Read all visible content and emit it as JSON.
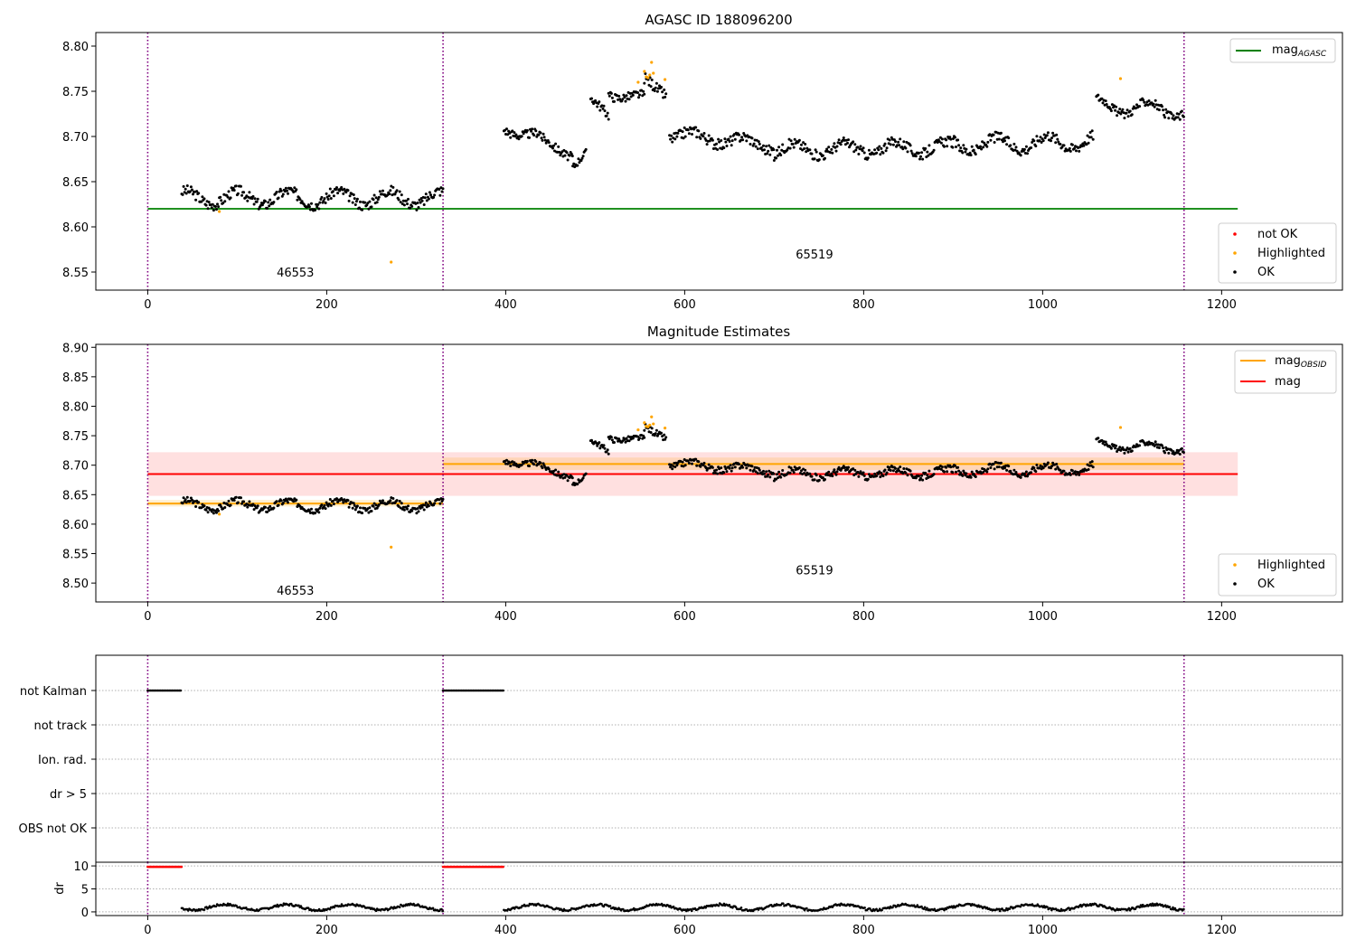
{
  "chart_data": [
    {
      "type": "scatter",
      "title": "AGASC ID 188096200",
      "xlim": [
        -58,
        1335
      ],
      "ylim": [
        8.53,
        8.815
      ],
      "x_ticks": [
        0,
        200,
        400,
        600,
        800,
        1000,
        1200
      ],
      "y_ticks": [
        8.55,
        8.6,
        8.65,
        8.7,
        8.75,
        8.8
      ],
      "obs_boundaries": [
        0,
        330,
        1158
      ],
      "obs_labels": [
        {
          "text": "46553",
          "x": 165,
          "y": 8.545
        },
        {
          "text": "65519",
          "x": 745,
          "y": 8.565
        }
      ],
      "lines": [
        {
          "name": "mag_AGASC",
          "color": "#008000",
          "y": 8.62,
          "x": [
            0,
            1218
          ]
        }
      ],
      "legend_lines": [
        {
          "label": "mag",
          "sub": "AGASC",
          "color": "#008000"
        }
      ],
      "legend_points": [
        {
          "label": "not OK",
          "color": "#ff0000"
        },
        {
          "label": "Highlighted",
          "color": "#ffa500"
        },
        {
          "label": "OK",
          "color": "#000000"
        }
      ],
      "segments": [
        {
          "x0": 38,
          "x1": 330,
          "y0": 8.632,
          "y1": 8.632,
          "amp": 0.008,
          "noise": 0.006
        },
        {
          "x0": 398,
          "x1": 440,
          "y0": 8.708,
          "y1": 8.7,
          "amp": 0.004,
          "noise": 0.005
        },
        {
          "x0": 440,
          "x1": 475,
          "y0": 8.695,
          "y1": 8.68,
          "amp": 0.004,
          "noise": 0.005
        },
        {
          "x0": 475,
          "x1": 490,
          "y0": 8.668,
          "y1": 8.68,
          "amp": 0.003,
          "noise": 0.004
        },
        {
          "x0": 495,
          "x1": 515,
          "y0": 8.74,
          "y1": 8.725,
          "amp": 0.003,
          "noise": 0.005
        },
        {
          "x0": 515,
          "x1": 555,
          "y0": 8.748,
          "y1": 8.742,
          "amp": 0.004,
          "noise": 0.005
        },
        {
          "x0": 555,
          "x1": 580,
          "y0": 8.76,
          "y1": 8.75,
          "amp": 0.005,
          "noise": 0.006
        },
        {
          "x0": 583,
          "x1": 700,
          "y0": 8.703,
          "y1": 8.69,
          "amp": 0.006,
          "noise": 0.006
        },
        {
          "x0": 700,
          "x1": 900,
          "y0": 8.685,
          "y1": 8.688,
          "amp": 0.007,
          "noise": 0.006
        },
        {
          "x0": 900,
          "x1": 1057,
          "y0": 8.69,
          "y1": 8.695,
          "amp": 0.008,
          "noise": 0.006
        },
        {
          "x0": 1060,
          "x1": 1158,
          "y0": 8.735,
          "y1": 8.728,
          "amp": 0.008,
          "noise": 0.005
        }
      ],
      "highlighted": [
        [
          80,
          8.617
        ],
        [
          272,
          8.561
        ],
        [
          548,
          8.76
        ],
        [
          555,
          8.772
        ],
        [
          557,
          8.766
        ],
        [
          559,
          8.765
        ],
        [
          561,
          8.768
        ],
        [
          563,
          8.782
        ],
        [
          565,
          8.77
        ],
        [
          578,
          8.763
        ],
        [
          1087,
          8.764
        ]
      ]
    },
    {
      "type": "scatter",
      "title": "Magnitude Estimates",
      "xlim": [
        -58,
        1335
      ],
      "ylim": [
        8.468,
        8.905
      ],
      "x_ticks": [
        0,
        200,
        400,
        600,
        800,
        1000,
        1200
      ],
      "y_ticks": [
        8.5,
        8.55,
        8.6,
        8.65,
        8.7,
        8.75,
        8.8,
        8.85,
        8.9
      ],
      "obs_boundaries": [
        0,
        330,
        1158
      ],
      "obs_labels": [
        {
          "text": "46553",
          "x": 165,
          "y": 8.48
        },
        {
          "text": "65519",
          "x": 745,
          "y": 8.515
        }
      ],
      "bands": [
        {
          "color": "#ff0000",
          "opacity": 0.12,
          "x": [
            0,
            1218
          ],
          "y": [
            8.648,
            8.722
          ]
        },
        {
          "color": "#ffa500",
          "opacity": 0.18,
          "x": [
            0,
            330
          ],
          "y": [
            8.63,
            8.641
          ]
        },
        {
          "color": "#ffa500",
          "opacity": 0.18,
          "x": [
            330,
            1158
          ],
          "y": [
            8.692,
            8.713
          ]
        }
      ],
      "lines": [
        {
          "name": "mag_OBSID",
          "color": "#ffa500",
          "y": 8.635,
          "x": [
            0,
            330
          ]
        },
        {
          "name": "mag_OBSID",
          "color": "#ffa500",
          "y": 8.702,
          "x": [
            330,
            1158
          ]
        },
        {
          "name": "mag",
          "color": "#ff0000",
          "y": 8.685,
          "x": [
            0,
            1218
          ]
        }
      ],
      "legend_lines": [
        {
          "label": "mag",
          "sub": "OBSID",
          "color": "#ffa500"
        },
        {
          "label": "mag",
          "sub": "",
          "color": "#ff0000"
        }
      ],
      "legend_points": [
        {
          "label": "Highlighted",
          "color": "#ffa500"
        },
        {
          "label": "OK",
          "color": "#000000"
        }
      ]
    },
    {
      "type": "scatter",
      "title": "",
      "xlim": [
        -58,
        1335
      ],
      "categories": [
        "not Kalman",
        "not track",
        "Ion. rad.",
        "dr > 5",
        "OBS not OK"
      ],
      "flag_ranges": [
        {
          "category": "not Kalman",
          "x": [
            [
              0,
              38
            ],
            [
              330,
              398
            ]
          ]
        }
      ],
      "obs_boundaries": [
        0,
        330,
        1158
      ]
    },
    {
      "type": "scatter",
      "title": "",
      "ylabel": "dr",
      "xlim": [
        -58,
        1335
      ],
      "ylim": [
        -0.8,
        10.8
      ],
      "x_ticks": [
        0,
        200,
        400,
        600,
        800,
        1000,
        1200
      ],
      "y_ticks": [
        0,
        5,
        10
      ],
      "obs_boundaries": [
        0,
        330,
        1158
      ],
      "clipped_ranges": [
        [
          0,
          38
        ],
        [
          330,
          398
        ]
      ],
      "clipped_value": 9.8,
      "dr_ranges": [
        [
          38,
          330
        ],
        [
          398,
          1158
        ]
      ],
      "dr_mean": 1.0
    }
  ]
}
